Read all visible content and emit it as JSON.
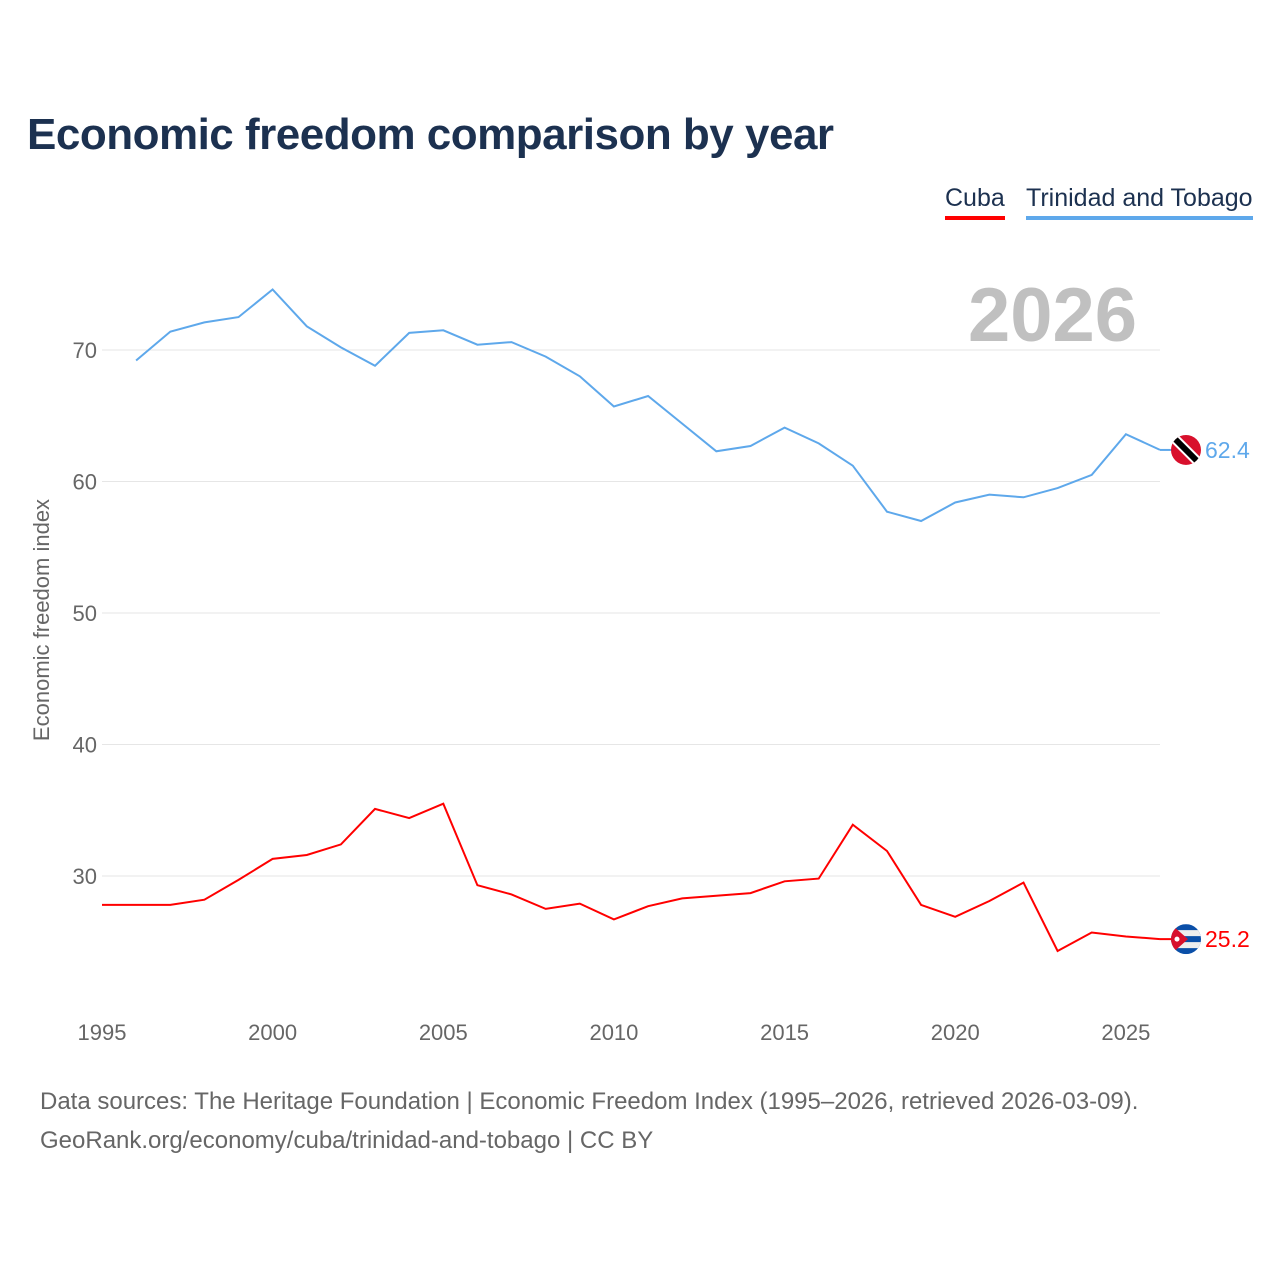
{
  "chart_data": {
    "type": "line",
    "title": "Economic freedom comparison by year",
    "ylabel": "Economic freedom index",
    "xlabel": "",
    "current_year_label": "2026",
    "xlim": [
      1995,
      2026
    ],
    "ylim": [
      20,
      76
    ],
    "x_ticks": [
      1995,
      2000,
      2005,
      2010,
      2015,
      2020,
      2025
    ],
    "y_ticks": [
      30,
      40,
      50,
      60,
      70
    ],
    "grid": true,
    "legend_position": "top-right",
    "series": [
      {
        "name": "Cuba",
        "color": "#ff0000",
        "flag": "cuba-flag",
        "end_label": "25.2",
        "x": [
          1995,
          1996,
          1997,
          1998,
          1999,
          2000,
          2001,
          2002,
          2003,
          2004,
          2005,
          2006,
          2007,
          2008,
          2009,
          2010,
          2011,
          2012,
          2013,
          2014,
          2015,
          2016,
          2017,
          2018,
          2019,
          2020,
          2021,
          2022,
          2023,
          2024,
          2025,
          2026
        ],
        "values": [
          27.8,
          27.8,
          27.8,
          28.2,
          29.7,
          31.3,
          31.6,
          32.4,
          35.1,
          34.4,
          35.5,
          29.3,
          28.6,
          27.5,
          27.9,
          26.7,
          27.7,
          28.3,
          28.5,
          28.7,
          29.6,
          29.8,
          33.9,
          31.9,
          27.8,
          26.9,
          28.1,
          29.5,
          24.3,
          25.7,
          25.4,
          25.2
        ]
      },
      {
        "name": "Trinidad and Tobago",
        "color": "#5ea8eb",
        "flag": "trinidad-and-tobago-flag",
        "end_label": "62.4",
        "x": [
          1996,
          1997,
          1998,
          1999,
          2000,
          2001,
          2002,
          2003,
          2004,
          2005,
          2006,
          2007,
          2008,
          2009,
          2010,
          2011,
          2012,
          2013,
          2014,
          2015,
          2016,
          2017,
          2018,
          2019,
          2020,
          2021,
          2022,
          2023,
          2024,
          2025,
          2026
        ],
        "values": [
          69.2,
          71.4,
          72.1,
          72.5,
          74.6,
          71.8,
          70.2,
          68.8,
          71.3,
          71.5,
          70.4,
          70.6,
          69.5,
          68.0,
          65.7,
          66.5,
          64.4,
          62.3,
          62.7,
          64.1,
          62.9,
          61.2,
          57.7,
          57.0,
          58.4,
          59.0,
          58.8,
          59.5,
          60.5,
          63.6,
          62.4
        ]
      }
    ]
  },
  "footer": {
    "line1": "Data sources: The Heritage Foundation | Economic Freedom Index (1995–2026, retrieved 2026-03-09).",
    "line2": "GeoRank.org/economy/cuba/trinidad-and-tobago | CC BY"
  }
}
